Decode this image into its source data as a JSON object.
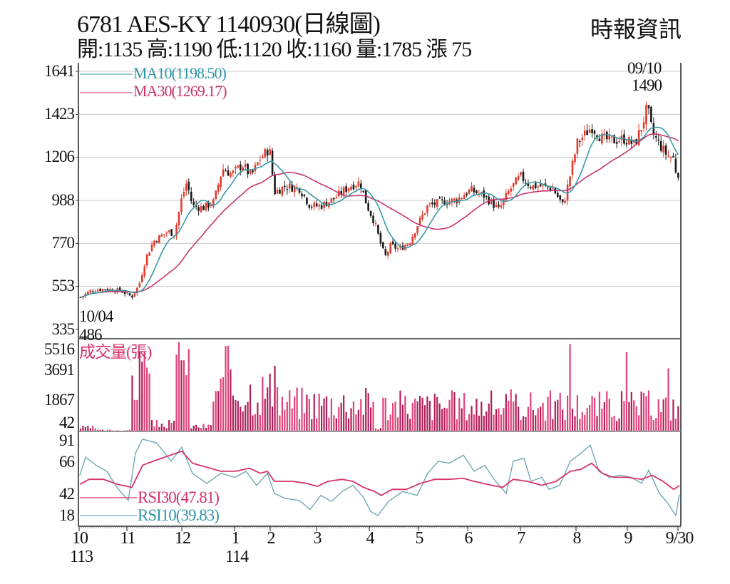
{
  "header": {
    "title": "6781  AES-KY 1140930(日線圖)",
    "summary": "開:1135 高:1190 低:1120 收:1160 量:1785 漲 75",
    "brand": "時報資訊"
  },
  "colors": {
    "up": "#e23b2e",
    "down": "#1a1a1a",
    "ma10": "#3a9aa8",
    "ma30": "#c8336e",
    "volume": "#e0427a",
    "volume_dark": "#b01e5a",
    "rsi30": "#d6336c",
    "rsi10": "#6fa9b0",
    "grid": "#c8c8c8",
    "axis": "#555555"
  },
  "price_panel": {
    "y_ticks": [
      "1641",
      "1423",
      "1206",
      "988",
      "770",
      "553",
      "335"
    ],
    "legend": {
      "ma10": "MA10(1198.50)",
      "ma30": "MA30(1269.17)"
    },
    "high_annotation": {
      "date": "09/10",
      "value": "1490"
    },
    "low_annotation": {
      "date": "10/04",
      "value": "486"
    }
  },
  "volume_panel": {
    "label": "成交量(張)",
    "y_ticks": [
      "5516",
      "3691",
      "1867",
      "42"
    ]
  },
  "rsi_panel": {
    "y_ticks": [
      "91",
      "66",
      "42",
      "18"
    ],
    "legend": {
      "rsi30": "RSI30(47.81)",
      "rsi10": "RSI10(39.83)"
    }
  },
  "x_axis": {
    "labels": [
      "10",
      "11",
      "12",
      "1",
      "2",
      "3",
      "4",
      "5",
      "6",
      "7",
      "8",
      "9",
      "9/30"
    ],
    "year_labels": [
      "113",
      "114"
    ]
  },
  "chart_data": [
    {
      "type": "candlestick",
      "title": "6781 AES-KY 1140930(日線圖)",
      "ylim": [
        335,
        1641
      ],
      "y_ticks": [
        335,
        553,
        770,
        988,
        1206,
        1423,
        1641
      ],
      "x_range": [
        "2024-10-01",
        "2025-09-30"
      ],
      "last_bar": {
        "open": 1135,
        "high": 1190,
        "low": 1120,
        "close": 1160,
        "volume": 1785,
        "change": 75
      },
      "annotations": [
        {
          "label": "09/10 1490",
          "type": "period_high"
        },
        {
          "label": "10/04 486",
          "type": "period_low"
        }
      ],
      "series": [
        {
          "name": "MA10",
          "last": 1198.5
        },
        {
          "name": "MA30",
          "last": 1269.17
        }
      ],
      "monthly_close_approx": {
        "x": [
          "10",
          "11",
          "12",
          "1",
          "2",
          "3",
          "4",
          "5",
          "6",
          "7",
          "8",
          "9",
          "9/30"
        ],
        "close": [
          500,
          520,
          1000,
          1150,
          1180,
          1000,
          950,
          780,
          1000,
          1050,
          1020,
          1300,
          1160
        ]
      },
      "grid": true
    },
    {
      "type": "bar",
      "title": "成交量(張)",
      "ylim": [
        42,
        5516
      ],
      "y_ticks": [
        42,
        1867,
        3691,
        5516
      ],
      "grid": false
    },
    {
      "type": "line",
      "title": "RSI",
      "ylim": [
        18,
        91
      ],
      "y_ticks": [
        18,
        42,
        66,
        91
      ],
      "series": [
        {
          "name": "RSI30",
          "last": 47.81
        },
        {
          "name": "RSI10",
          "last": 39.83
        }
      ],
      "grid": false
    }
  ]
}
